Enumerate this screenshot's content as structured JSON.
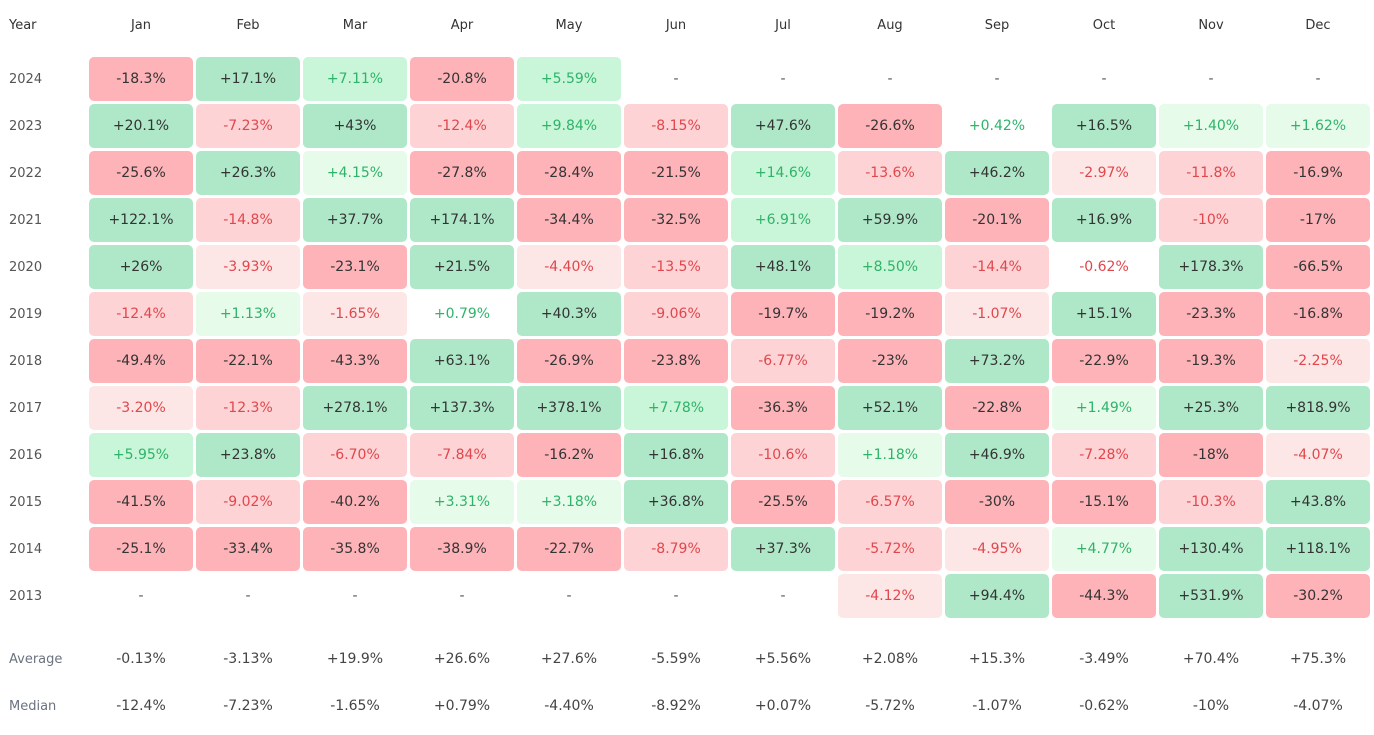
{
  "header": [
    "Year",
    "Jan",
    "Feb",
    "Mar",
    "Apr",
    "May",
    "Jun",
    "Jul",
    "Aug",
    "Sep",
    "Oct",
    "Nov",
    "Dec"
  ],
  "rows": [
    [
      "2024",
      "-18.3%",
      "+17.1%",
      "+7.11%",
      "-20.8%",
      "+5.59%",
      "-",
      "-",
      "-",
      "-",
      "-",
      "-",
      "-"
    ],
    [
      "2023",
      "+20.1%",
      "-7.23%",
      "+43%",
      "-12.4%",
      "+9.84%",
      "-8.15%",
      "+47.6%",
      "-26.6%",
      "+0.42%",
      "+16.5%",
      "+1.40%",
      "+1.62%"
    ],
    [
      "2022",
      "-25.6%",
      "+26.3%",
      "+4.15%",
      "-27.8%",
      "-28.4%",
      "-21.5%",
      "+14.6%",
      "-13.6%",
      "+46.2%",
      "-2.97%",
      "-11.8%",
      "-16.9%"
    ],
    [
      "2021",
      "+122.1%",
      "-14.8%",
      "+37.7%",
      "+174.1%",
      "-34.4%",
      "-32.5%",
      "+6.91%",
      "+59.9%",
      "-20.1%",
      "+16.9%",
      "-10%",
      "-17%"
    ],
    [
      "2020",
      "+26%",
      "-3.93%",
      "-23.1%",
      "+21.5%",
      "-4.40%",
      "-13.5%",
      "+48.1%",
      "+8.50%",
      "-14.4%",
      "-0.62%",
      "+178.3%",
      "-66.5%"
    ],
    [
      "2019",
      "-12.4%",
      "+1.13%",
      "-1.65%",
      "+0.79%",
      "+40.3%",
      "-9.06%",
      "-19.7%",
      "-19.2%",
      "-1.07%",
      "+15.1%",
      "-23.3%",
      "-16.8%"
    ],
    [
      "2018",
      "-49.4%",
      "-22.1%",
      "-43.3%",
      "+63.1%",
      "-26.9%",
      "-23.8%",
      "-6.77%",
      "-23%",
      "+73.2%",
      "-22.9%",
      "-19.3%",
      "-2.25%"
    ],
    [
      "2017",
      "-3.20%",
      "-12.3%",
      "+278.1%",
      "+137.3%",
      "+378.1%",
      "+7.78%",
      "-36.3%",
      "+52.1%",
      "-22.8%",
      "+1.49%",
      "+25.3%",
      "+818.9%"
    ],
    [
      "2016",
      "+5.95%",
      "+23.8%",
      "-6.70%",
      "-7.84%",
      "-16.2%",
      "+16.8%",
      "-10.6%",
      "+1.18%",
      "+46.9%",
      "-7.28%",
      "-18%",
      "-4.07%"
    ],
    [
      "2015",
      "-41.5%",
      "-9.02%",
      "-40.2%",
      "+3.31%",
      "+3.18%",
      "+36.8%",
      "-25.5%",
      "-6.57%",
      "-30%",
      "-15.1%",
      "-10.3%",
      "+43.8%"
    ],
    [
      "2014",
      "-25.1%",
      "-33.4%",
      "-35.8%",
      "-38.9%",
      "-22.7%",
      "-8.79%",
      "+37.3%",
      "-5.72%",
      "-4.95%",
      "+4.77%",
      "+130.4%",
      "+118.1%"
    ],
    [
      "2013",
      "-",
      "-",
      "-",
      "-",
      "-",
      "-",
      "-",
      "-4.12%",
      "+94.4%",
      "-44.3%",
      "+531.9%",
      "-30.2%"
    ]
  ],
  "summary": [
    [
      "Average",
      "-0.13%",
      "-3.13%",
      "+19.9%",
      "+26.6%",
      "+27.6%",
      "-5.59%",
      "+5.56%",
      "+2.08%",
      "+15.3%",
      "-3.49%",
      "+70.4%",
      "+75.3%"
    ],
    [
      "Median",
      "-12.4%",
      "-7.23%",
      "-1.65%",
      "+0.79%",
      "-4.40%",
      "-8.92%",
      "+0.07%",
      "-5.72%",
      "-1.07%",
      "-0.62%",
      "-10%",
      "-4.07%"
    ]
  ]
}
